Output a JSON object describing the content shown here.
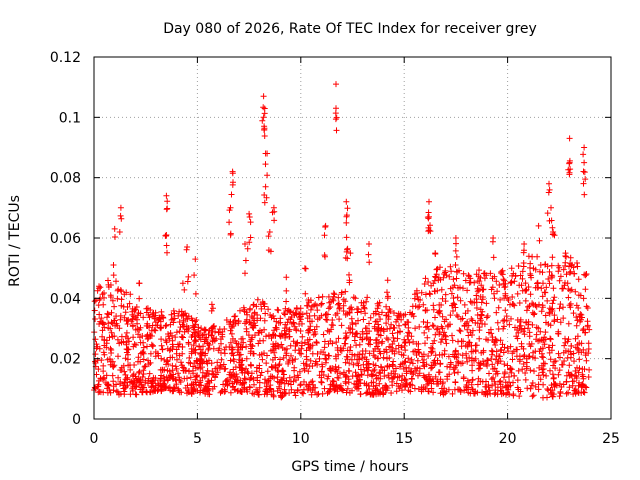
{
  "chart_data": {
    "type": "scatter",
    "title": "Day 080 of 2026, Rate Of TEC Index for receiver grey",
    "xlabel": "GPS time / hours",
    "ylabel": "ROTI / TECUs",
    "xlim": [
      0,
      25
    ],
    "ylim": [
      0,
      0.12
    ],
    "x_ticks": [
      "0",
      "5",
      "10",
      "15",
      "20",
      "25"
    ],
    "y_ticks": [
      "0",
      "0.02",
      "0.04",
      "0.06",
      "0.08",
      "0.1",
      "0.12"
    ],
    "x_tick_values": [
      0,
      5,
      10,
      15,
      20,
      25
    ],
    "y_tick_values": [
      0,
      0.02,
      0.04,
      0.06,
      0.08,
      0.1,
      0.12
    ],
    "grid": true,
    "marker": "+",
    "color": "#ff0000",
    "data_range_hours": [
      0,
      24
    ],
    "baseline_band": {
      "hours": [
        0,
        1,
        2,
        3,
        4,
        5,
        6,
        7,
        8,
        9,
        10,
        11,
        12,
        13,
        14,
        15,
        16,
        17,
        18,
        19,
        20,
        21,
        22,
        23,
        24
      ],
      "low": [
        0.009,
        0.008,
        0.008,
        0.009,
        0.009,
        0.008,
        0.008,
        0.009,
        0.008,
        0.007,
        0.008,
        0.008,
        0.009,
        0.008,
        0.008,
        0.009,
        0.009,
        0.008,
        0.008,
        0.008,
        0.008,
        0.007,
        0.007,
        0.008,
        0.009
      ],
      "high": [
        0.036,
        0.04,
        0.033,
        0.03,
        0.031,
        0.028,
        0.026,
        0.031,
        0.034,
        0.03,
        0.033,
        0.034,
        0.036,
        0.035,
        0.032,
        0.03,
        0.04,
        0.043,
        0.04,
        0.042,
        0.041,
        0.045,
        0.043,
        0.045,
        0.04
      ]
    },
    "peaks": [
      {
        "x": 0.3,
        "y": 0.04
      },
      {
        "x": 1.0,
        "y": 0.063
      },
      {
        "x": 1.3,
        "y": 0.07
      },
      {
        "x": 2.2,
        "y": 0.045
      },
      {
        "x": 3.5,
        "y": 0.074
      },
      {
        "x": 3.5,
        "y": 0.061
      },
      {
        "x": 4.3,
        "y": 0.045
      },
      {
        "x": 4.5,
        "y": 0.057
      },
      {
        "x": 4.9,
        "y": 0.053
      },
      {
        "x": 5.7,
        "y": 0.038
      },
      {
        "x": 6.6,
        "y": 0.07
      },
      {
        "x": 6.7,
        "y": 0.082
      },
      {
        "x": 7.3,
        "y": 0.058
      },
      {
        "x": 7.5,
        "y": 0.068
      },
      {
        "x": 8.2,
        "y": 0.107
      },
      {
        "x": 8.2,
        "y": 0.1
      },
      {
        "x": 8.3,
        "y": 0.088
      },
      {
        "x": 8.3,
        "y": 0.077
      },
      {
        "x": 8.5,
        "y": 0.062
      },
      {
        "x": 8.7,
        "y": 0.07
      },
      {
        "x": 9.3,
        "y": 0.047
      },
      {
        "x": 10.2,
        "y": 0.05
      },
      {
        "x": 11.2,
        "y": 0.064
      },
      {
        "x": 11.7,
        "y": 0.111
      },
      {
        "x": 11.7,
        "y": 0.103
      },
      {
        "x": 12.2,
        "y": 0.072
      },
      {
        "x": 12.2,
        "y": 0.065
      },
      {
        "x": 12.4,
        "y": 0.055
      },
      {
        "x": 13.3,
        "y": 0.058
      },
      {
        "x": 14.2,
        "y": 0.046
      },
      {
        "x": 16.2,
        "y": 0.072
      },
      {
        "x": 16.2,
        "y": 0.067
      },
      {
        "x": 16.5,
        "y": 0.055
      },
      {
        "x": 17.5,
        "y": 0.06
      },
      {
        "x": 18.5,
        "y": 0.048
      },
      {
        "x": 19.3,
        "y": 0.06
      },
      {
        "x": 20.2,
        "y": 0.05
      },
      {
        "x": 20.8,
        "y": 0.058
      },
      {
        "x": 21.5,
        "y": 0.064
      },
      {
        "x": 22.0,
        "y": 0.078
      },
      {
        "x": 22.1,
        "y": 0.07
      },
      {
        "x": 22.2,
        "y": 0.062
      },
      {
        "x": 22.8,
        "y": 0.055
      },
      {
        "x": 23.0,
        "y": 0.093
      },
      {
        "x": 23.0,
        "y": 0.085
      },
      {
        "x": 23.7,
        "y": 0.09
      },
      {
        "x": 23.7,
        "y": 0.085
      }
    ]
  }
}
